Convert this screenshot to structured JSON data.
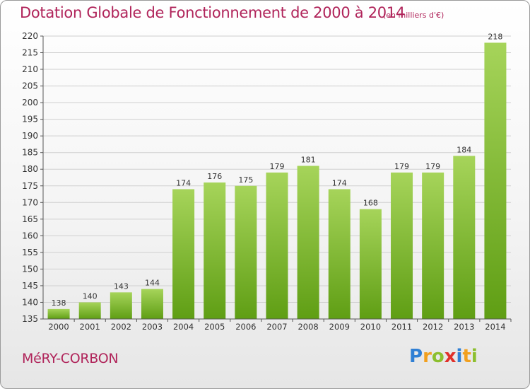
{
  "header": {
    "title": "Dotation Globale de Fonctionnement de 2000 à 2014",
    "unit": "(en milliers d'€)"
  },
  "footer": {
    "commune": "MéRY-CORBON",
    "logo": "Proxiti"
  },
  "colors": {
    "title": "#b0245a",
    "bar_light": "#a6d45a",
    "bar_dark": "#5f9e14",
    "grid": "#cfcfcf",
    "axis": "#555555"
  },
  "chart_data": {
    "type": "bar",
    "categories": [
      "2000",
      "2001",
      "2002",
      "2003",
      "2004",
      "2005",
      "2006",
      "2007",
      "2008",
      "2009",
      "2010",
      "2011",
      "2012",
      "2013",
      "2014"
    ],
    "values": [
      138,
      140,
      143,
      144,
      174,
      176,
      175,
      179,
      181,
      174,
      168,
      179,
      179,
      184,
      218
    ],
    "title": "Dotation Globale de Fonctionnement de 2000 à 2014",
    "xlabel": "",
    "ylabel": "",
    "ylim": [
      135,
      220
    ],
    "yticks": [
      135,
      140,
      145,
      150,
      155,
      160,
      165,
      170,
      175,
      180,
      185,
      190,
      195,
      200,
      205,
      210,
      215,
      220
    ],
    "grid": true,
    "data_labels": true
  }
}
